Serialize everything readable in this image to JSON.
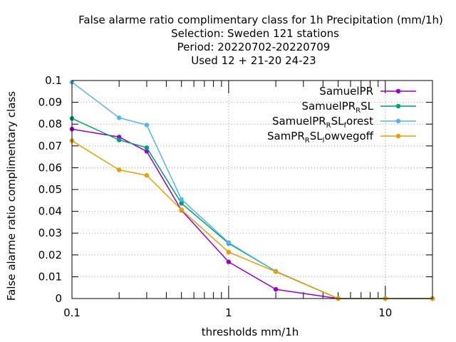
{
  "chart_data": {
    "type": "line",
    "title_lines": [
      "False alarme ratio complimentary class  for 1h Precipitation (mm/1h)",
      "Selection: Sweden    121 stations",
      "Period: 20220702-20220709",
      "Used  12 + 21-20 24-23"
    ],
    "xlabel": "thresholds mm/1h",
    "ylabel": "False alarme ratio complimentary class",
    "xscale": "log",
    "xlim": [
      0.1,
      20
    ],
    "ylim": [
      0,
      0.1
    ],
    "grid": true,
    "legend_position": "top-right",
    "xticks": [
      {
        "value": 0.1,
        "label": "0.1"
      },
      {
        "value": 1,
        "label": "1"
      },
      {
        "value": 10,
        "label": "10"
      }
    ],
    "yticks": [
      {
        "value": 0,
        "label": "0"
      },
      {
        "value": 0.01,
        "label": "0.01"
      },
      {
        "value": 0.02,
        "label": "0.02"
      },
      {
        "value": 0.03,
        "label": "0.03"
      },
      {
        "value": 0.04,
        "label": "0.04"
      },
      {
        "value": 0.05,
        "label": "0.05"
      },
      {
        "value": 0.06,
        "label": "0.06"
      },
      {
        "value": 0.07,
        "label": "0.07"
      },
      {
        "value": 0.08,
        "label": "0.08"
      },
      {
        "value": 0.09,
        "label": "0.09"
      },
      {
        "value": 0.1,
        "label": "0.1"
      }
    ],
    "x": [
      0.1,
      0.2,
      0.3,
      0.5,
      1,
      2,
      5,
      10,
      20
    ],
    "series": [
      {
        "name": "SamuelPR",
        "name_parts": [
          {
            "text": "SamuelPR",
            "sub": false
          }
        ],
        "color": "#9400d3",
        "values": [
          0.0777,
          0.0741,
          0.0675,
          0.0405,
          0.0168,
          0.0042,
          0.0,
          0.0,
          0.0
        ]
      },
      {
        "name": "SamuelPR_RSL",
        "name_parts": [
          {
            "text": "SamuelPR",
            "sub": false
          },
          {
            "text": "R",
            "sub": true
          },
          {
            "text": "SL",
            "sub": false
          }
        ],
        "color": "#009e73",
        "values": [
          0.0826,
          0.0727,
          0.0692,
          0.0437,
          0.0253,
          0.0125,
          0.0,
          0.0,
          0.0
        ]
      },
      {
        "name": "SamuelPR_RSL_forest",
        "name_parts": [
          {
            "text": "SamuelPR",
            "sub": false
          },
          {
            "text": "R",
            "sub": true
          },
          {
            "text": "SL",
            "sub": false
          },
          {
            "text": "f",
            "sub": true
          },
          {
            "text": "orest",
            "sub": false
          }
        ],
        "color": "#56b4e9",
        "values": [
          0.0992,
          0.0829,
          0.0796,
          0.0455,
          0.0257,
          0.0125,
          0.0,
          0.0,
          0.0
        ]
      },
      {
        "name": "SamPR_RSL_lowvegoff",
        "name_parts": [
          {
            "text": "SamPR",
            "sub": false
          },
          {
            "text": "R",
            "sub": true
          },
          {
            "text": "SL",
            "sub": false
          },
          {
            "text": "l",
            "sub": true
          },
          {
            "text": "owvegoff",
            "sub": false
          }
        ],
        "color": "#e69f00",
        "values": [
          0.0724,
          0.059,
          0.0565,
          0.0407,
          0.0213,
          0.0123,
          0.0,
          0.0,
          0.0
        ]
      }
    ]
  }
}
